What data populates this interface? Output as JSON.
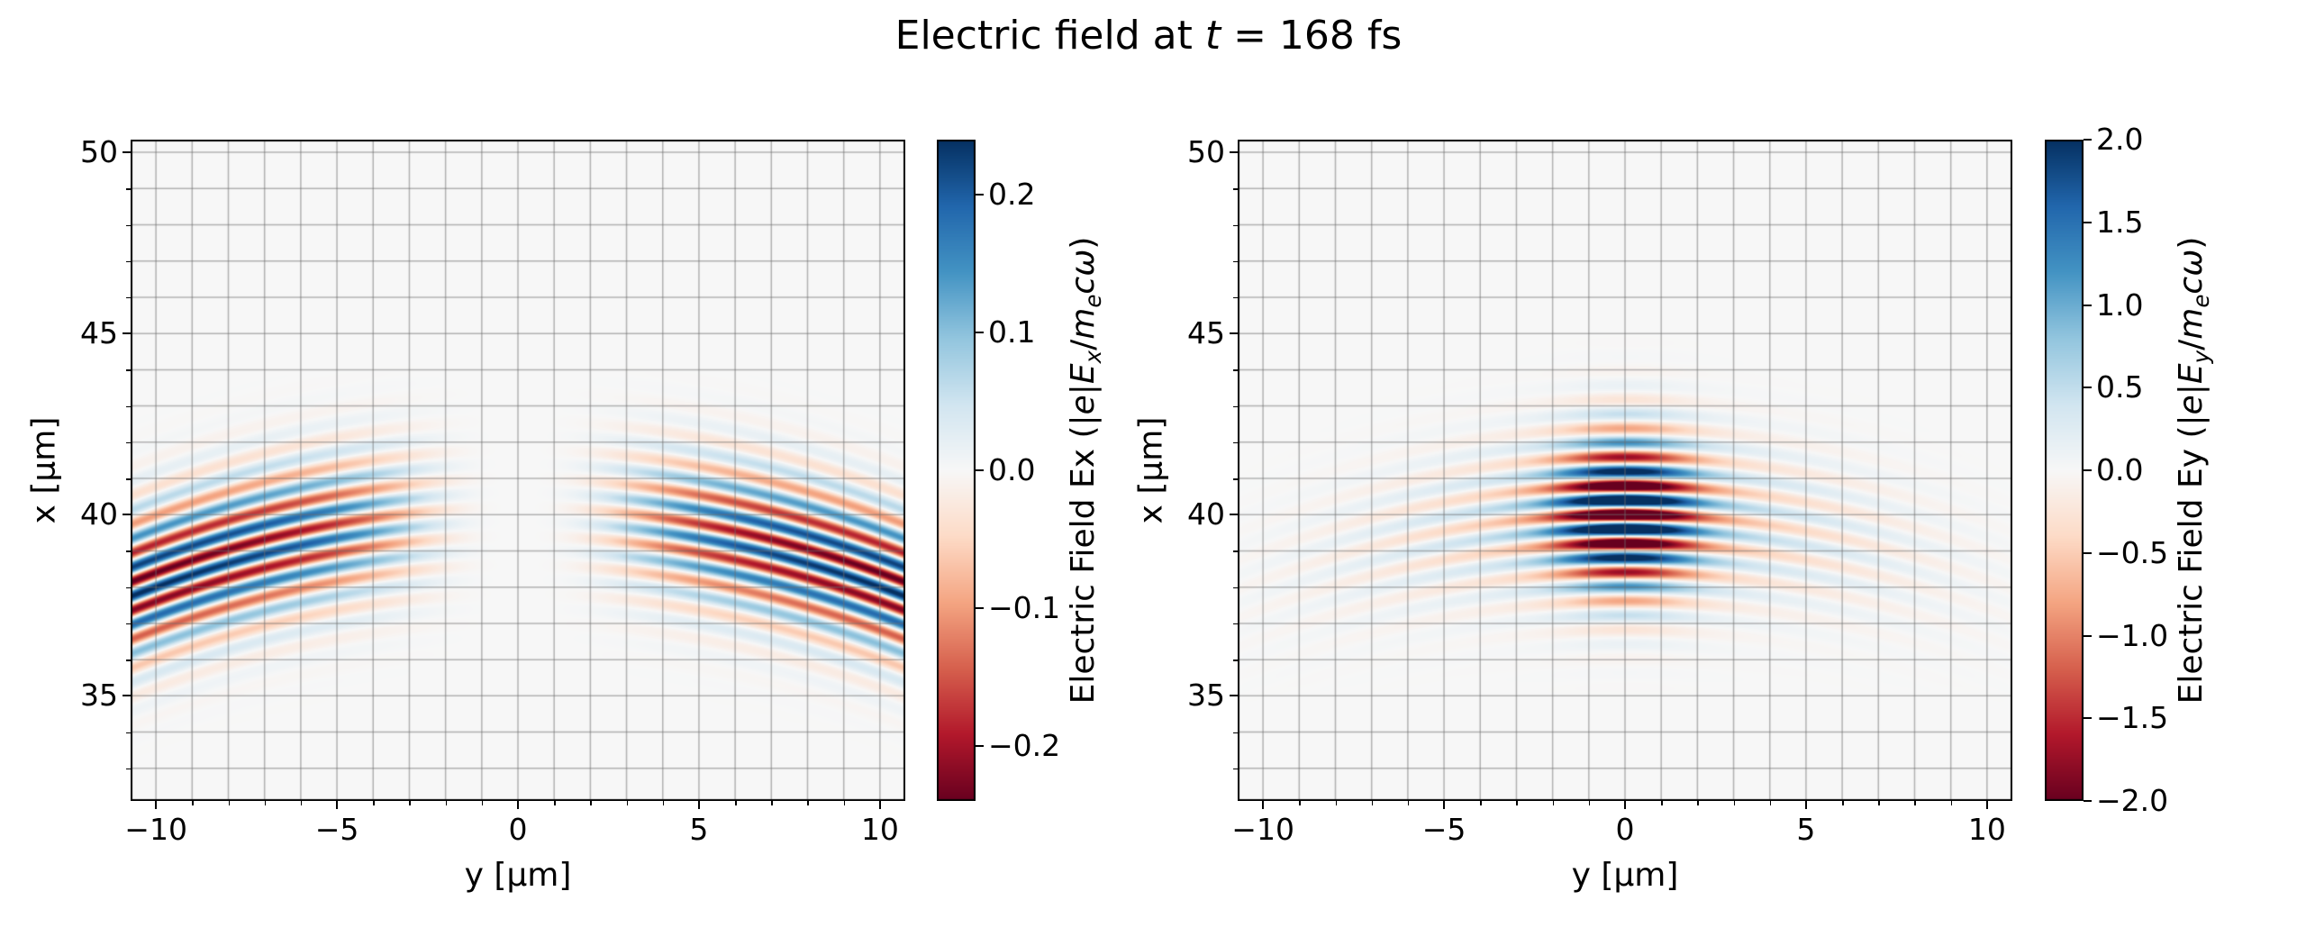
{
  "title_parts": [
    {
      "t": "Electric field at "
    },
    {
      "t": "t",
      "i": 1
    },
    {
      "t": " = 168 fs"
    }
  ],
  "chart_data": {
    "type": "heatmap",
    "title": "Electric field at t = 168 fs",
    "time_fs": 168,
    "colormap": "RdBu_r",
    "colormap_stops": [
      "#67001f",
      "#b2182b",
      "#d6604d",
      "#f4a582",
      "#fddbc7",
      "#f7f7f7",
      "#d1e5f0",
      "#92c5de",
      "#4393c3",
      "#2166ac",
      "#053061"
    ],
    "grid_color": "rgba(110,110,110,0.5)",
    "grid_on": true,
    "panels": [
      {
        "id": "Ex",
        "xlabel": "y [μm]",
        "ylabel": "x [μm]",
        "xlim": [
          -10.7,
          10.7
        ],
        "ylim": [
          32.1,
          50.35
        ],
        "xticks": [
          "−10",
          "−5",
          "0",
          "5",
          "10"
        ],
        "xtick_values": [
          -10,
          -5,
          0,
          5,
          10
        ],
        "yticks": [
          "35",
          "40",
          "45",
          "50"
        ],
        "ytick_values": [
          35,
          40,
          45,
          50
        ],
        "grid_step": 1,
        "colorbar": {
          "clim": [
            -0.24,
            0.24
          ],
          "ticks": [
            "0.2",
            "0.1",
            "0.0",
            "−0.1",
            "−0.2"
          ],
          "tick_values": [
            0.2,
            0.1,
            0.0,
            -0.1,
            -0.2
          ],
          "label_plain": "Electric Field Ex (|e|Ex/mecω)",
          "label_parts": [
            {
              "t": "Electric Field Ex (|"
            },
            {
              "t": "e",
              "i": 1
            },
            {
              "t": "|"
            },
            {
              "t": "E",
              "i": 1
            },
            {
              "t": "x",
              "i": 1,
              "s": 1
            },
            {
              "t": "/"
            },
            {
              "t": "m",
              "i": 1
            },
            {
              "t": "e",
              "i": 1,
              "s": 1
            },
            {
              "t": "c",
              "i": 1
            },
            {
              "t": "ω",
              "i": 1
            },
            {
              "t": ")"
            }
          ]
        },
        "field": {
          "wavelength": 0.8,
          "center": 40.0,
          "curvature": 0.018,
          "sigma_x": 1.9,
          "phase": 1.571,
          "envelope": {
            "type": "plateau",
            "a": 0.26,
            "k": 60
          }
        }
      },
      {
        "id": "Ey",
        "xlabel": "y [μm]",
        "ylabel": "x [μm]",
        "xlim": [
          -10.7,
          10.7
        ],
        "ylim": [
          32.1,
          50.35
        ],
        "xticks": [
          "−10",
          "−5",
          "0",
          "5",
          "10"
        ],
        "xtick_values": [
          -10,
          -5,
          0,
          5,
          10
        ],
        "yticks": [
          "35",
          "40",
          "45",
          "50"
        ],
        "ytick_values": [
          35,
          40,
          45,
          50
        ],
        "grid_step": 1,
        "colorbar": {
          "clim": [
            -2.0,
            2.0
          ],
          "ticks": [
            "2.0",
            "1.5",
            "1.0",
            "0.5",
            "0.0",
            "−0.5",
            "−1.0",
            "−1.5",
            "−2.0"
          ],
          "tick_values": [
            2.0,
            1.5,
            1.0,
            0.5,
            0.0,
            -0.5,
            -1.0,
            -1.5,
            -2.0
          ],
          "label_plain": "Electric Field Ey (|e|Ey/mecω)",
          "label_parts": [
            {
              "t": "Electric Field Ey (|"
            },
            {
              "t": "e",
              "i": 1
            },
            {
              "t": "|"
            },
            {
              "t": "E",
              "i": 1
            },
            {
              "t": "y",
              "i": 1,
              "s": 1
            },
            {
              "t": "/"
            },
            {
              "t": "m",
              "i": 1
            },
            {
              "t": "e",
              "i": 1,
              "s": 1
            },
            {
              "t": "c",
              "i": 1
            },
            {
              "t": "ω",
              "i": 1
            },
            {
              "t": ")"
            }
          ]
        },
        "field": {
          "wavelength": 0.8,
          "center": 40.0,
          "curvature": 0.018,
          "sigma_x": 2.0,
          "phase": 3.1416,
          "envelope": {
            "type": "gauss2",
            "a1": 2.6,
            "w1": 1.8,
            "a2": 0.7,
            "w2": 6.5
          }
        }
      }
    ]
  }
}
